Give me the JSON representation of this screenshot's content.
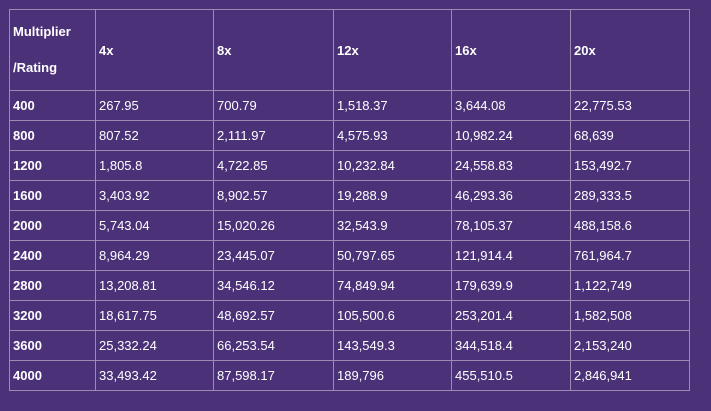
{
  "table": {
    "header_first": {
      "line1": "Multiplier",
      "line2": "/Rating"
    },
    "columns": [
      "4x",
      "8x",
      "12x",
      "16x",
      "20x"
    ],
    "rows": [
      {
        "rating": "400",
        "values": [
          "267.95",
          "700.79",
          "1,518.37",
          "3,644.08",
          "22,775.53"
        ]
      },
      {
        "rating": "800",
        "values": [
          "807.52",
          "2,111.97",
          "4,575.93",
          "10,982.24",
          "68,639"
        ]
      },
      {
        "rating": "1200",
        "values": [
          "1,805.8",
          "4,722.85",
          "10,232.84",
          "24,558.83",
          "153,492.7"
        ]
      },
      {
        "rating": "1600",
        "values": [
          "3,403.92",
          "8,902.57",
          "19,288.9",
          "46,293.36",
          "289,333.5"
        ]
      },
      {
        "rating": "2000",
        "values": [
          "5,743.04",
          "15,020.26",
          "32,543.9",
          "78,105.37",
          "488,158.6"
        ]
      },
      {
        "rating": "2400",
        "values": [
          "8,964.29",
          "23,445.07",
          "50,797.65",
          "121,914.4",
          "761,964.7"
        ]
      },
      {
        "rating": "2800",
        "values": [
          "13,208.81",
          "34,546.12",
          "74,849.94",
          "179,639.9",
          "1,122,749"
        ]
      },
      {
        "rating": "3200",
        "values": [
          "18,617.75",
          "48,692.57",
          "105,500.6",
          "253,201.4",
          "1,582,508"
        ]
      },
      {
        "rating": "3600",
        "values": [
          "25,332.24",
          "66,253.54",
          "143,549.3",
          "344,518.4",
          "2,153,240"
        ]
      },
      {
        "rating": "4000",
        "values": [
          "33,493.42",
          "87,598.17",
          "189,796",
          "455,510.5",
          "2,846,941"
        ]
      }
    ]
  },
  "colors": {
    "background": "#4b3178",
    "border": "#9b8cb3",
    "text": "#ffffff"
  }
}
